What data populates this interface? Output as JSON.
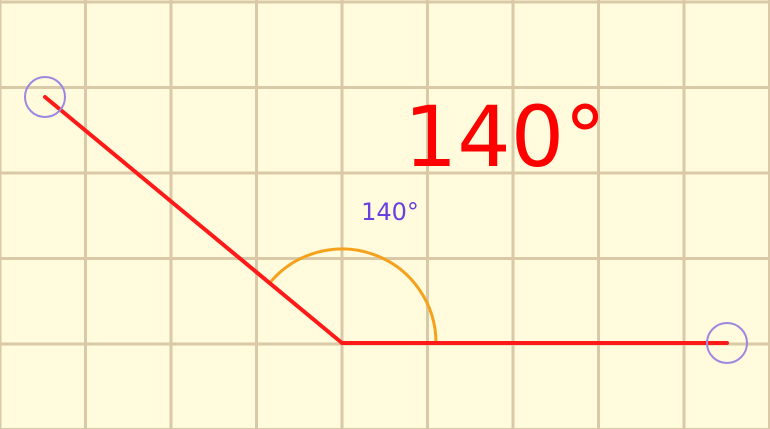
{
  "angle": {
    "large_label": "140°",
    "small_label": "140°",
    "value_degrees": 140
  },
  "colors": {
    "background": "#fffbdc",
    "grid": "#d9c9a6",
    "rays": "#ff1a1a",
    "arc": "#f4a21e",
    "small_label": "#6a3fe0",
    "large_label": "#ff0000",
    "handle": "#9b88e0"
  },
  "handles": [
    {
      "name": "left-ray-handle"
    },
    {
      "name": "right-ray-handle"
    }
  ]
}
